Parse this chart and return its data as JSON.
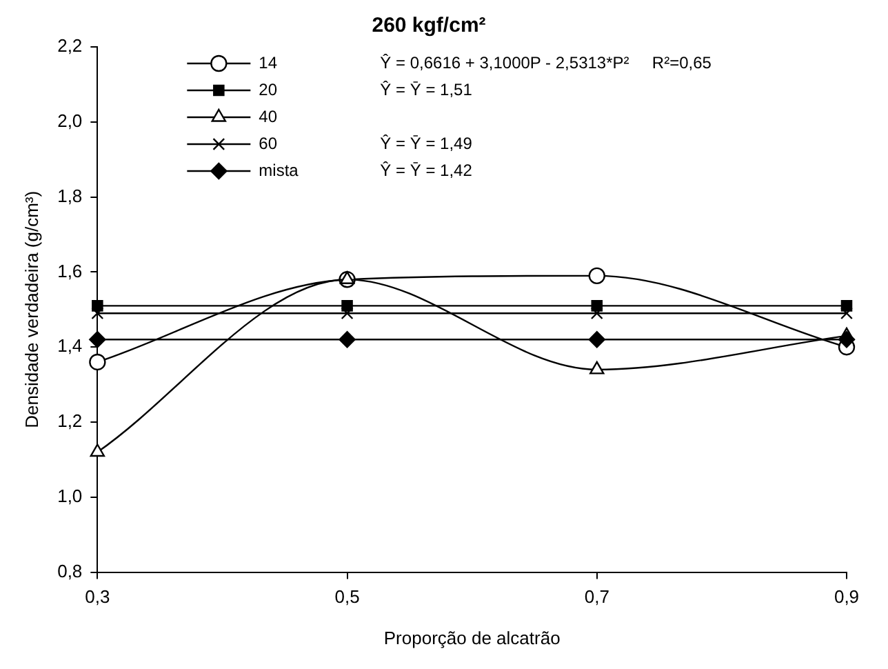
{
  "chart_data": {
    "type": "line",
    "title": "260 kgf/cm²",
    "xlabel": "Proporção de alcatrão",
    "ylabel": "Densidade verdadeira (g/cm³)",
    "x": [
      0.3,
      0.5,
      0.7,
      0.9
    ],
    "xlim": [
      0.3,
      0.9
    ],
    "xticks": [
      {
        "value": 0.3,
        "label": "0,3"
      },
      {
        "value": 0.5,
        "label": "0,5"
      },
      {
        "value": 0.7,
        "label": "0,7"
      },
      {
        "value": 0.9,
        "label": "0,9"
      }
    ],
    "ylim": [
      0.8,
      2.2
    ],
    "yticks": [
      {
        "value": 0.8,
        "label": "0,8"
      },
      {
        "value": 1.0,
        "label": "1,0"
      },
      {
        "value": 1.2,
        "label": "1,2"
      },
      {
        "value": 1.4,
        "label": "1,4"
      },
      {
        "value": 1.6,
        "label": "1,6"
      },
      {
        "value": 1.8,
        "label": "1,8"
      },
      {
        "value": 2.0,
        "label": "2,0"
      },
      {
        "value": 2.2,
        "label": "2,2"
      }
    ],
    "grid": false,
    "legend": "top",
    "series": [
      {
        "name": "14",
        "color": "#000000",
        "marker": "circle",
        "values": [
          1.36,
          1.58,
          1.59,
          1.4
        ]
      },
      {
        "name": "20",
        "color": "#000000",
        "marker": "square",
        "values": [
          1.51,
          1.51,
          1.51,
          1.51
        ]
      },
      {
        "name": "40",
        "color": "#000000",
        "marker": "triangle",
        "values": [
          1.12,
          1.58,
          1.34,
          1.43
        ]
      },
      {
        "name": "60",
        "color": "#000000",
        "marker": "cross",
        "values": [
          1.49,
          1.49,
          1.49,
          1.49
        ]
      },
      {
        "name": "mista",
        "color": "#000000",
        "marker": "diamond",
        "values": [
          1.42,
          1.42,
          1.42,
          1.42
        ]
      }
    ],
    "annotations": [
      "Ŷ = 0,6616 + 3,1000P - 2,5313*P²     R²=0,65",
      "Ŷ = Ȳ = 1,51",
      null,
      "Ŷ = Ȳ = 1,49",
      "Ŷ = Ȳ = 1,42"
    ]
  }
}
